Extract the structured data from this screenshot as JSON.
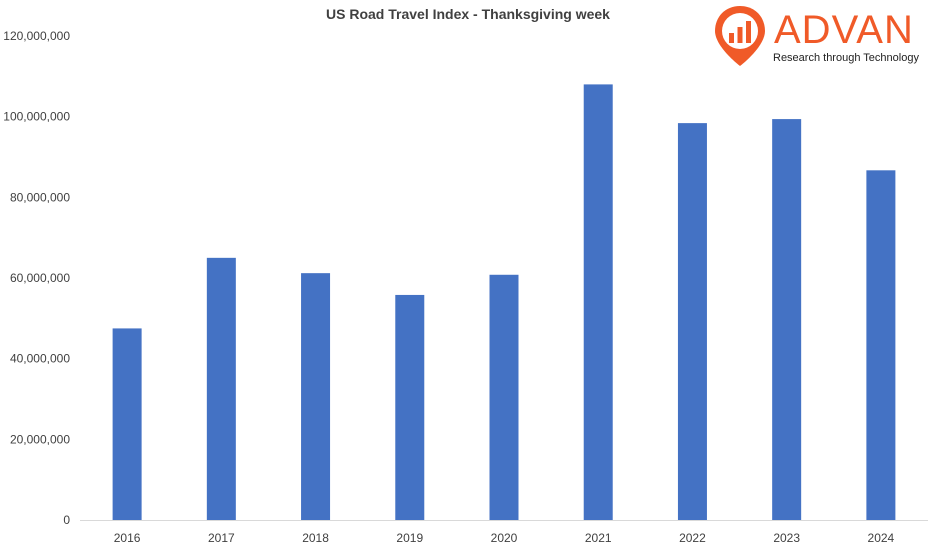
{
  "chart_data": {
    "type": "bar",
    "title": "US Road Travel Index  - Thanksgiving week",
    "xlabel": "",
    "ylabel": "",
    "categories": [
      "2016",
      "2017",
      "2018",
      "2019",
      "2020",
      "2021",
      "2022",
      "2023",
      "2024"
    ],
    "values": [
      47500000,
      65000000,
      61200000,
      55800000,
      60800000,
      108000000,
      98400000,
      99400000,
      86700000
    ],
    "ylim": [
      0,
      120000000
    ],
    "yticks": [
      0,
      20000000,
      40000000,
      60000000,
      80000000,
      100000000,
      120000000
    ],
    "ytick_labels": [
      "0",
      "20,000,000",
      "40,000,000",
      "60,000,000",
      "80,000,000",
      "100,000,000",
      "120,000,000"
    ],
    "grid": false,
    "legend": "none",
    "bar_color": "#4472c4",
    "axis_color": "#d9d9d9",
    "text_color": "#404040"
  },
  "logo": {
    "name": "ADVAN",
    "tagline": "Research through Technology",
    "color": "#f05a28",
    "icon": "location-pin-bar-chart-icon"
  }
}
